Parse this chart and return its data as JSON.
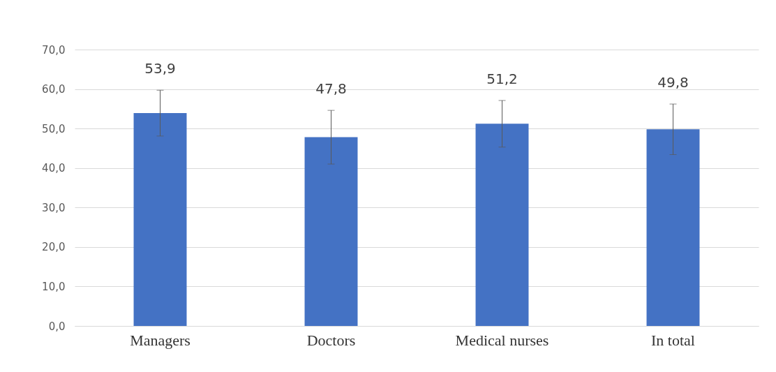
{
  "chart_data": {
    "type": "bar",
    "categories": [
      "Managers",
      "Doctors",
      "Medical  nurses",
      "In total"
    ],
    "values": [
      53.9,
      47.8,
      51.2,
      49.8
    ],
    "color": "#4472c4",
    "errors": [
      5.8,
      6.8,
      5.9,
      6.4
    ],
    "value_labels": [
      "53,9",
      "47,8",
      "51,2",
      "49,8"
    ],
    "ylim": [
      0,
      70
    ],
    "yticks": [
      {
        "value": 0,
        "label": "0,0"
      },
      {
        "value": 10,
        "label": "10,0"
      },
      {
        "value": 20,
        "label": "20,0"
      },
      {
        "value": 30,
        "label": "30,0"
      },
      {
        "value": 40,
        "label": "40,0"
      },
      {
        "value": 50,
        "label": "50,0"
      },
      {
        "value": 60,
        "label": "60,0"
      },
      {
        "value": 70,
        "label": "70,0"
      }
    ],
    "grid": "y"
  }
}
